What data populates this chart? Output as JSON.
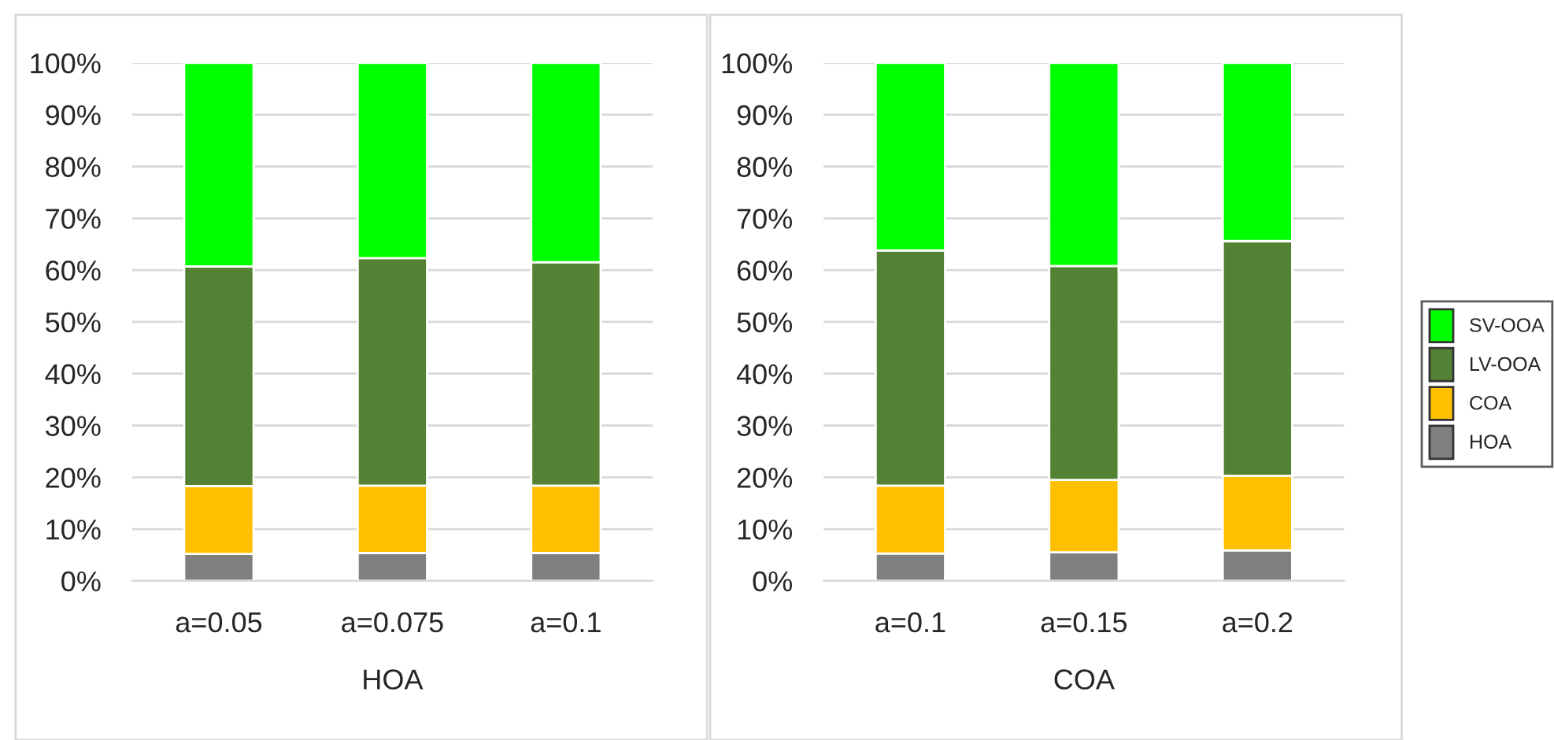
{
  "chart_data": [
    {
      "type": "bar",
      "stacked": true,
      "xlabel": "HOA",
      "categories": [
        "a=0.05",
        "a=0.075",
        "a=0.1"
      ],
      "ylim": [
        0,
        100
      ],
      "yticks": [
        {
          "value": 0,
          "label": "0%"
        },
        {
          "value": 10,
          "label": "10%"
        },
        {
          "value": 20,
          "label": "20%"
        },
        {
          "value": 30,
          "label": "30%"
        },
        {
          "value": 40,
          "label": "40%"
        },
        {
          "value": 50,
          "label": "50%"
        },
        {
          "value": 60,
          "label": "60%"
        },
        {
          "value": 70,
          "label": "70%"
        },
        {
          "value": 80,
          "label": "80%"
        },
        {
          "value": 90,
          "label": "90%"
        },
        {
          "value": 100,
          "label": "100%"
        }
      ],
      "grid": "y",
      "series": [
        {
          "color": "#808080",
          "values": [
            5.2,
            5.4,
            5.4
          ]
        },
        {
          "color": "#ffc000",
          "values": [
            13.1,
            13.0,
            13.0
          ]
        },
        {
          "color": "#548235",
          "values": [
            42.4,
            43.9,
            43.1
          ]
        },
        {
          "color": "#00ff00",
          "values": [
            39.3,
            37.7,
            38.5
          ]
        }
      ]
    },
    {
      "type": "bar",
      "stacked": true,
      "xlabel": "COA",
      "categories": [
        "a=0.1",
        "a=0.15",
        "a=0.2"
      ],
      "ylim": [
        0,
        100
      ],
      "yticks": [
        {
          "value": 0,
          "label": "0%"
        },
        {
          "value": 10,
          "label": "10%"
        },
        {
          "value": 20,
          "label": "20%"
        },
        {
          "value": 30,
          "label": "30%"
        },
        {
          "value": 40,
          "label": "40%"
        },
        {
          "value": 50,
          "label": "50%"
        },
        {
          "value": 60,
          "label": "60%"
        },
        {
          "value": 70,
          "label": "70%"
        },
        {
          "value": 80,
          "label": "80%"
        },
        {
          "value": 90,
          "label": "90%"
        },
        {
          "value": 100,
          "label": "100%"
        }
      ],
      "grid": "y",
      "legend": "right",
      "series": [
        {
          "name": "HOA",
          "color": "#808080",
          "values": [
            5.3,
            5.5,
            5.9
          ]
        },
        {
          "name": "COA",
          "color": "#ffc000",
          "values": [
            13.1,
            14.0,
            14.4
          ]
        },
        {
          "name": "LV-OOA",
          "color": "#548235",
          "values": [
            45.4,
            41.3,
            45.3
          ]
        },
        {
          "name": "SV-OOA",
          "color": "#00ff00",
          "values": [
            36.2,
            39.2,
            34.4
          ]
        }
      ]
    }
  ]
}
